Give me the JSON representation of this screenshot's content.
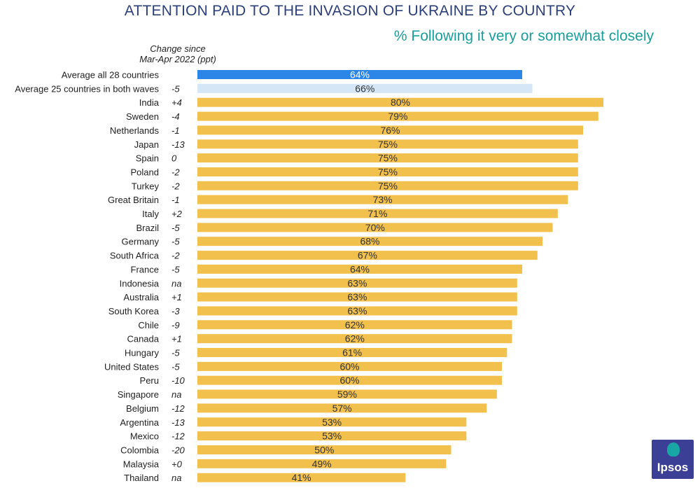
{
  "header": {
    "title": "ATTENTION PAID TO THE INVASION OF UKRAINE BY COUNTRY",
    "subtitle": "% Following it very or somewhat closely",
    "change_line1": "Change since",
    "change_line2": "Mar-Apr 2022 (ppt)"
  },
  "logo": {
    "text": "Ipsos",
    "color": "#3b3f95",
    "accent": "#19a7a5"
  },
  "chart_data": {
    "type": "bar",
    "orientation": "horizontal",
    "title": "ATTENTION PAID TO THE INVASION OF UKRAINE BY COUNTRY",
    "subtitle": "% Following it very or somewhat closely",
    "unit": "%",
    "xlim": [
      0,
      100
    ],
    "grid": false,
    "colors": {
      "highlight": "#2b86e8",
      "light": "#d5e6f7",
      "default": "#f2c04d"
    },
    "categories": [
      "Average all 28 countries",
      "Average 25 countries in both waves",
      "India",
      "Sweden",
      "Netherlands",
      "Japan",
      "Spain",
      "Poland",
      "Turkey",
      "Great Britain",
      "Italy",
      "Brazil",
      "Germany",
      "South Africa",
      "France",
      "Indonesia",
      "Australia",
      "South Korea",
      "Chile",
      "Canada",
      "Hungary",
      "United States",
      "Peru",
      "Singapore",
      "Belgium",
      "Argentina",
      "Mexico",
      "Colombia",
      "Malaysia",
      "Thailand"
    ],
    "values": [
      64,
      66,
      80,
      79,
      76,
      75,
      75,
      75,
      75,
      73,
      71,
      70,
      68,
      67,
      64,
      63,
      63,
      63,
      62,
      62,
      61,
      60,
      60,
      59,
      57,
      53,
      53,
      50,
      49,
      41
    ],
    "labels": [
      "64%",
      "66%",
      "80%",
      "79%",
      "76%",
      "75%",
      "75%",
      "75%",
      "75%",
      "73%",
      "71%",
      "70%",
      "68%",
      "67%",
      "64%",
      "63%",
      "63%",
      "63%",
      "62%",
      "62%",
      "61%",
      "60%",
      "60%",
      "59%",
      "57%",
      "53%",
      "53%",
      "50%",
      "49%",
      "41%"
    ],
    "change": [
      "",
      "-5",
      "+4",
      "-4",
      "-1",
      "-13",
      "0",
      "-2",
      "-2",
      "-1",
      "+2",
      "-5",
      "-5",
      "-2",
      "-5",
      "na",
      "+1",
      "-3",
      "-9",
      "+1",
      "-5",
      "-5",
      "-10",
      "na",
      "-12",
      "-13",
      "-12",
      "-20",
      "+0",
      "na"
    ],
    "bar_style": [
      "highlight",
      "light",
      "default",
      "default",
      "default",
      "default",
      "default",
      "default",
      "default",
      "default",
      "default",
      "default",
      "default",
      "default",
      "default",
      "default",
      "default",
      "default",
      "default",
      "default",
      "default",
      "default",
      "default",
      "default",
      "default",
      "default",
      "default",
      "default",
      "default",
      "default"
    ]
  }
}
